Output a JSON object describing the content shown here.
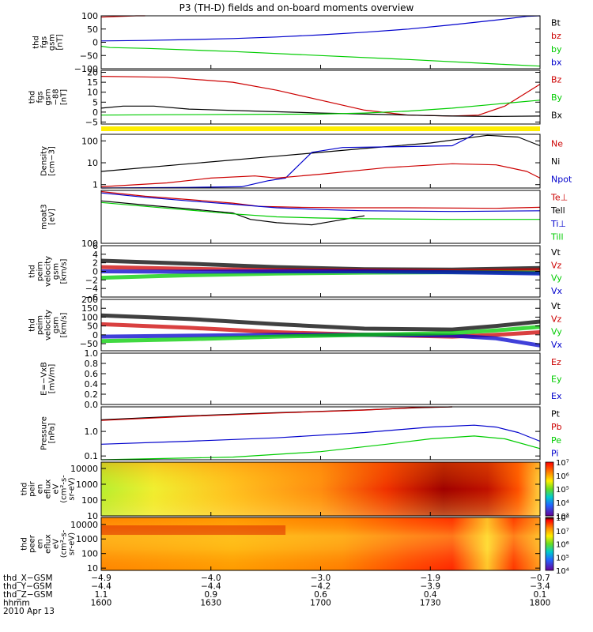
{
  "title": "P3 (TH-D) fields and on-board moments overview",
  "chart_data": [
    {
      "type": "line",
      "ylabel": [
        "thd",
        "fgs",
        "gsm",
        "[nT]"
      ],
      "ylim": [
        -100,
        100
      ],
      "ticks": [
        "100",
        "50",
        "0",
        "−50",
        "−100"
      ],
      "tick_values": [
        100,
        50,
        0,
        -50,
        -100
      ],
      "legend": [
        {
          "label": "Bt",
          "color": "#000000"
        },
        {
          "label": "bz",
          "color": "#cc0000"
        },
        {
          "label": "by",
          "color": "#00cc00"
        },
        {
          "label": "bx",
          "color": "#0000cc"
        }
      ],
      "series": [
        {
          "color": "#cc0000",
          "x": [
            0,
            0.08,
            0.1
          ],
          "y": [
            95,
            100,
            105
          ]
        },
        {
          "color": "#0000cc",
          "x": [
            0,
            0.1,
            0.2,
            0.3,
            0.4,
            0.5,
            0.6,
            0.7,
            0.8,
            0.9,
            0.97,
            1
          ],
          "y": [
            5,
            7,
            10,
            14,
            20,
            28,
            38,
            50,
            66,
            84,
            98,
            105
          ]
        },
        {
          "color": "#00cc00",
          "x": [
            0,
            0.02,
            0.1,
            0.3,
            0.5,
            0.7,
            0.9,
            1
          ],
          "y": [
            -15,
            -20,
            -23,
            -35,
            -50,
            -65,
            -82,
            -90
          ]
        }
      ]
    },
    {
      "type": "line",
      "ylabel": [
        "thd",
        "fgs",
        "gsm",
        "−88",
        "[nT]"
      ],
      "ylim": [
        -6,
        21
      ],
      "ticks": [
        "20",
        "15",
        "10",
        "5",
        "0",
        "−5"
      ],
      "tick_values": [
        20,
        15,
        10,
        5,
        0,
        -5
      ],
      "legend": [
        {
          "label": "Bz",
          "color": "#cc0000"
        },
        {
          "label": "By",
          "color": "#00cc00"
        },
        {
          "label": "Bx",
          "color": "#000000"
        }
      ],
      "series": [
        {
          "color": "#cc0000",
          "x": [
            0,
            0.15,
            0.3,
            0.4,
            0.5,
            0.6,
            0.7,
            0.8,
            0.86,
            0.92,
            1
          ],
          "y": [
            18,
            17.5,
            15,
            11,
            6,
            1,
            -1.5,
            -2,
            -1.5,
            3,
            14
          ]
        },
        {
          "color": "#000000",
          "x": [
            0,
            0.05,
            0.12,
            0.2,
            0.35,
            0.5,
            0.6,
            0.7,
            0.8,
            0.9,
            1
          ],
          "y": [
            2,
            3,
            3,
            1.5,
            0.5,
            -0.5,
            -1,
            -1.5,
            -2,
            -2.2,
            -2
          ]
        },
        {
          "color": "#00cc00",
          "x": [
            0,
            0.15,
            0.3,
            0.5,
            0.6,
            0.7,
            0.8,
            0.9,
            1
          ],
          "y": [
            -1.5,
            -1.3,
            -1.2,
            -1,
            -0.5,
            0.5,
            2,
            4,
            6
          ]
        }
      ]
    },
    {
      "type": "line",
      "ylabel": [
        "Density",
        "[cm−3]"
      ],
      "yscale": "log",
      "ylim": [
        0.7,
        200
      ],
      "ticks": [
        "100",
        "10",
        "1"
      ],
      "tick_values": [
        100,
        10,
        1
      ],
      "legend": [
        {
          "label": "Ne",
          "color": "#cc0000"
        },
        {
          "label": "Ni",
          "color": "#000000"
        },
        {
          "label": "Npot",
          "color": "#0000cc"
        }
      ],
      "series": [
        {
          "color": "#000000",
          "x": [
            0,
            0.2,
            0.4,
            0.6,
            0.75,
            0.88,
            0.95,
            1
          ],
          "y": [
            4,
            9,
            20,
            45,
            80,
            180,
            150,
            60
          ]
        },
        {
          "color": "#0000cc",
          "x": [
            0,
            0.2,
            0.32,
            0.38,
            0.42,
            0.48,
            0.55,
            0.7,
            0.8,
            0.83,
            0.85
          ],
          "y": [
            0.7,
            0.75,
            0.8,
            1.5,
            2,
            30,
            50,
            55,
            60,
            120,
            200
          ]
        },
        {
          "color": "#cc0000",
          "x": [
            0,
            0.15,
            0.25,
            0.35,
            0.4,
            0.5,
            0.65,
            0.8,
            0.9,
            0.97,
            1
          ],
          "y": [
            0.8,
            1.2,
            2,
            2.5,
            2,
            3,
            6,
            9,
            8,
            4,
            2
          ]
        }
      ]
    },
    {
      "type": "line",
      "ylabel": [
        "moat3",
        "[eV]"
      ],
      "yscale": "log",
      "ylim": [
        100,
        10000
      ],
      "ticks": [
        "100"
      ],
      "tick_values": [
        100
      ],
      "legend": [
        {
          "label": "Te⊥",
          "color": "#cc0000"
        },
        {
          "label": "Tell",
          "color": "#000000"
        },
        {
          "label": "Ti⊥",
          "color": "#0000cc"
        },
        {
          "label": "Till",
          "color": "#00cc00"
        }
      ],
      "series": [
        {
          "color": "#cc0000",
          "x": [
            0,
            0.1,
            0.2,
            0.3,
            0.36,
            0.45,
            0.55,
            0.7,
            0.9,
            1
          ],
          "y": [
            9000,
            6000,
            4500,
            3300,
            2500,
            2300,
            2200,
            2200,
            2100,
            2300
          ]
        },
        {
          "color": "#000000",
          "x": [
            0,
            0.1,
            0.2,
            0.3,
            0.34,
            0.4,
            0.48,
            0.52,
            0.6
          ],
          "y": [
            4000,
            2800,
            2000,
            1400,
            800,
            600,
            500,
            650,
            1100
          ]
        },
        {
          "color": "#0000cc",
          "x": [
            0,
            0.1,
            0.2,
            0.3,
            0.4,
            0.5,
            0.6,
            0.8,
            1
          ],
          "y": [
            8000,
            5500,
            4000,
            3000,
            2200,
            1900,
            1700,
            1600,
            1700
          ]
        },
        {
          "color": "#00cc00",
          "x": [
            0,
            0.1,
            0.2,
            0.3,
            0.4,
            0.5,
            0.6,
            0.8,
            1
          ],
          "y": [
            3500,
            2500,
            1800,
            1300,
            1000,
            900,
            850,
            800,
            800
          ]
        }
      ]
    },
    {
      "type": "line",
      "ylabel": [
        "thd",
        "peim",
        "velocity",
        "gsm",
        "[km/s]"
      ],
      "ylim": [
        -6,
        6
      ],
      "ticks": [
        "6",
        "4",
        "2",
        "0",
        "−2",
        "−4",
        "−6"
      ],
      "tick_values": [
        6,
        4,
        2,
        0,
        -2,
        -4,
        -6
      ],
      "legend": [
        {
          "label": "Vt",
          "color": "#000000"
        },
        {
          "label": "Vz",
          "color": "#cc0000"
        },
        {
          "label": "Vy",
          "color": "#00cc00"
        },
        {
          "label": "Vx",
          "color": "#0000cc"
        }
      ],
      "series": [
        {
          "color": "#000000",
          "x": [
            0,
            0.2,
            0.4,
            0.6,
            0.8,
            1
          ],
          "y": [
            2.5,
            1.8,
            1,
            0.5,
            0.4,
            0.8
          ]
        },
        {
          "color": "#cc0000",
          "x": [
            0,
            0.2,
            0.4,
            0.6,
            0.8,
            1
          ],
          "y": [
            1,
            0.6,
            0.3,
            0.2,
            0.1,
            0.3
          ]
        },
        {
          "color": "#00cc00",
          "x": [
            0,
            0.2,
            0.4,
            0.6,
            0.8,
            1
          ],
          "y": [
            -1.5,
            -0.9,
            -0.5,
            -0.3,
            -0.2,
            -0.3
          ]
        },
        {
          "color": "#0000cc",
          "x": [
            0,
            0.2,
            0.4,
            0.6,
            0.8,
            1
          ],
          "y": [
            0,
            -0.1,
            0,
            0,
            -0.2,
            -0.5
          ]
        }
      ]
    },
    {
      "type": "line",
      "ylabel": [
        "thd",
        "peim",
        "velocity",
        "gsm",
        "[km/s]"
      ],
      "ylim": [
        -90,
        200
      ],
      "ticks": [
        "200",
        "150",
        "100",
        "50",
        "0",
        "−50"
      ],
      "tick_values": [
        200,
        150,
        100,
        50,
        0,
        -50
      ],
      "legend": [
        {
          "label": "Vt",
          "color": "#000000"
        },
        {
          "label": "Vz",
          "color": "#cc0000"
        },
        {
          "label": "Vy",
          "color": "#00cc00"
        },
        {
          "label": "Vx",
          "color": "#0000cc"
        }
      ],
      "series": [
        {
          "color": "#000000",
          "x": [
            0,
            0.2,
            0.4,
            0.6,
            0.8,
            0.9,
            1
          ],
          "y": [
            110,
            90,
            60,
            35,
            30,
            50,
            75
          ]
        },
        {
          "color": "#cc0000",
          "x": [
            0,
            0.2,
            0.4,
            0.6,
            0.8,
            0.9,
            1
          ],
          "y": [
            60,
            40,
            15,
            0,
            -10,
            0,
            15
          ]
        },
        {
          "color": "#0000cc",
          "x": [
            0,
            0.2,
            0.4,
            0.6,
            0.8,
            0.9,
            1
          ],
          "y": [
            -10,
            -5,
            0,
            0,
            -5,
            -20,
            -60
          ]
        },
        {
          "color": "#00cc00",
          "x": [
            0,
            0.2,
            0.4,
            0.6,
            0.8,
            0.9,
            1
          ],
          "y": [
            -35,
            -25,
            -10,
            0,
            10,
            25,
            45
          ]
        }
      ]
    },
    {
      "type": "line",
      "ylabel": [
        "E=−VxB",
        "[mV/m]"
      ],
      "ylim": [
        0,
        1
      ],
      "ticks": [
        "1.0",
        "0.8",
        "0.6",
        "0.4",
        "0.2",
        "0.0"
      ],
      "tick_values": [
        1,
        0.8,
        0.6,
        0.4,
        0.2,
        0
      ],
      "legend": [
        {
          "label": "Ez",
          "color": "#cc0000"
        },
        {
          "label": "Ey",
          "color": "#00cc00"
        },
        {
          "label": "Ex",
          "color": "#0000cc"
        }
      ],
      "series": []
    },
    {
      "type": "line",
      "ylabel": [
        "Pressure",
        "[nPa]"
      ],
      "yscale": "log",
      "ylim": [
        0.07,
        10
      ],
      "ticks": [
        "1.0",
        "0.1"
      ],
      "tick_values": [
        1,
        0.1
      ],
      "legend": [
        {
          "label": "Pt",
          "color": "#000000"
        },
        {
          "label": "Pb",
          "color": "#cc0000"
        },
        {
          "label": "Pe",
          "color": "#00cc00"
        },
        {
          "label": "Pi",
          "color": "#0000cc"
        }
      ],
      "series": [
        {
          "color": "#000000",
          "x": [
            0,
            0.2,
            0.4,
            0.6,
            0.72,
            0.8
          ],
          "y": [
            3,
            4.3,
            5.8,
            7.5,
            9.2,
            11
          ]
        },
        {
          "color": "#cc0000",
          "x": [
            0,
            0.2,
            0.4,
            0.6,
            0.72,
            0.8
          ],
          "y": [
            2.8,
            4.1,
            5.6,
            7.4,
            9.4,
            11
          ]
        },
        {
          "color": "#0000cc",
          "x": [
            0,
            0.2,
            0.4,
            0.6,
            0.75,
            0.85,
            0.9,
            0.95,
            1
          ],
          "y": [
            0.3,
            0.4,
            0.55,
            0.9,
            1.5,
            1.8,
            1.5,
            0.9,
            0.4
          ]
        },
        {
          "color": "#00cc00",
          "x": [
            0,
            0.3,
            0.5,
            0.65,
            0.75,
            0.85,
            0.92,
            1
          ],
          "y": [
            0.07,
            0.09,
            0.15,
            0.3,
            0.5,
            0.65,
            0.5,
            0.2
          ]
        }
      ]
    },
    {
      "type": "heatmap",
      "ylabel": [
        "thd",
        "peir",
        "en",
        "eflux",
        "eV",
        "(cm²-s-",
        "sr-eV)"
      ],
      "yscale": "log",
      "ylim": [
        10,
        25000
      ],
      "ticks": [
        "10000",
        "1000",
        "100",
        "10"
      ],
      "tick_values": [
        10000,
        1000,
        100,
        10
      ],
      "colorbar": {
        "scale": "log",
        "range": [
          1000,
          10000000
        ],
        "ticks": [
          "10⁷",
          "10⁶",
          "10⁵",
          "10⁴",
          "10³"
        ],
        "tick_values": [
          10000000,
          1000000,
          100000,
          10000,
          1000
        ]
      }
    },
    {
      "type": "heatmap",
      "ylabel": [
        "thd",
        "peer",
        "en",
        "eflux",
        "eV",
        "(cm²-s-",
        "sr-eV)"
      ],
      "yscale": "log",
      "ylim": [
        7,
        30000
      ],
      "ticks": [
        "10000",
        "1000",
        "100",
        "10"
      ],
      "tick_values": [
        10000,
        1000,
        100,
        10
      ],
      "colorbar": {
        "scale": "log",
        "range": [
          10000,
          100000000
        ],
        "ticks": [
          "10⁸",
          "10⁷",
          "10⁶",
          "10⁵",
          "10⁴"
        ],
        "tick_values": [
          100000000,
          10000000,
          1000000,
          100000,
          10000
        ]
      }
    }
  ],
  "xaxis": {
    "tick_positions": [
      0,
      0.25,
      0.5,
      0.75,
      1
    ],
    "rows": [
      {
        "label": "thd_X−GSM",
        "values": [
          "−4.9",
          "−4.0",
          "−3.0",
          "−1.9",
          "−0.7"
        ]
      },
      {
        "label": "thd_Y−GSM",
        "values": [
          "−4.4",
          "−4.4",
          "−4.2",
          "−3.9",
          "−3.4"
        ]
      },
      {
        "label": "thd_Z−GSM",
        "values": [
          "1.1",
          "0.9",
          "0.6",
          "0.4",
          "0.1"
        ]
      },
      {
        "label": "hhmm",
        "values": [
          "1600",
          "1630",
          "1700",
          "1730",
          "1800"
        ]
      }
    ],
    "date": "2010 Apr 13"
  }
}
